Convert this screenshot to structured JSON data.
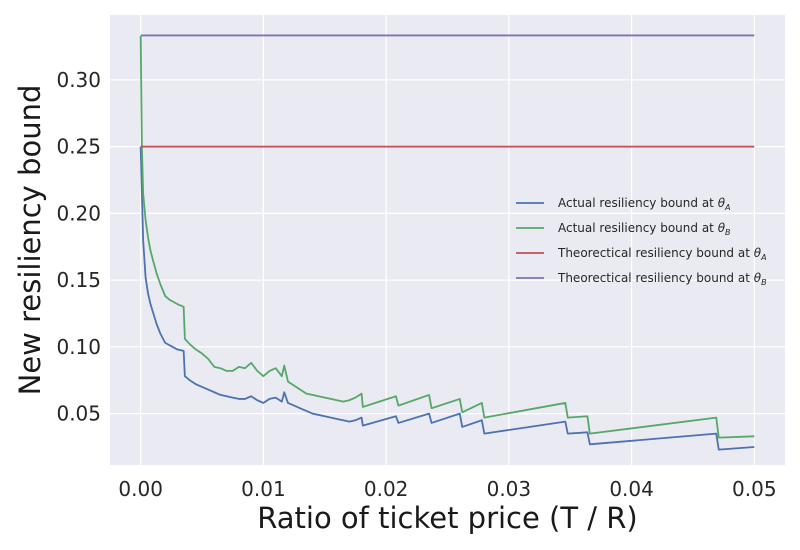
{
  "chart_data": {
    "type": "line",
    "xlabel": "Ratio of ticket price (T / R)",
    "ylabel": "New resiliency bound",
    "xlim": [
      -0.0025,
      0.0525
    ],
    "ylim": [
      0.0115,
      0.3486
    ],
    "x_ticks": [
      0.0,
      0.01,
      0.02,
      0.03,
      0.04,
      0.05
    ],
    "x_tick_labels": [
      "0.00",
      "0.01",
      "0.02",
      "0.03",
      "0.04",
      "0.05"
    ],
    "y_ticks": [
      0.05,
      0.1,
      0.15,
      0.2,
      0.25,
      0.3
    ],
    "y_tick_labels": [
      "0.05",
      "0.10",
      "0.15",
      "0.20",
      "0.25",
      "0.30"
    ],
    "grid": true,
    "style": "seaborn-darkgrid",
    "legend_position": "center-right",
    "background_color": "#eaeaf2",
    "grid_color": "#ffffff",
    "series": [
      {
        "name": "Actual resiliency bound at θA",
        "legend_main": "Actual resiliency bound at ",
        "legend_math": "θ",
        "legend_sub": "A",
        "color": "#4c72b0",
        "x": [
          0,
          0.0002,
          0.0004,
          0.0006,
          0.0008,
          0.001,
          0.0013,
          0.0016,
          0.002,
          0.0024,
          0.003,
          0.0035,
          0.0036,
          0.004,
          0.0045,
          0.005,
          0.0055,
          0.006,
          0.0065,
          0.007,
          0.0075,
          0.008,
          0.0085,
          0.009,
          0.0095,
          0.01,
          0.0105,
          0.011,
          0.0115,
          0.0117,
          0.012,
          0.0125,
          0.013,
          0.0135,
          0.014,
          0.0145,
          0.015,
          0.0155,
          0.016,
          0.0165,
          0.017,
          0.0175,
          0.018,
          0.0181,
          0.0208,
          0.021,
          0.0235,
          0.0237,
          0.026,
          0.0262,
          0.0278,
          0.028,
          0.0346,
          0.0348,
          0.0364,
          0.0366,
          0.0469,
          0.0471,
          0.05
        ],
        "y": [
          0.25,
          0.18,
          0.152,
          0.14,
          0.132,
          0.126,
          0.117,
          0.11,
          0.103,
          0.101,
          0.098,
          0.097,
          0.078,
          0.075,
          0.072,
          0.07,
          0.068,
          0.066,
          0.064,
          0.063,
          0.062,
          0.061,
          0.061,
          0.063,
          0.06,
          0.058,
          0.061,
          0.062,
          0.059,
          0.066,
          0.058,
          0.056,
          0.054,
          0.052,
          0.05,
          0.049,
          0.048,
          0.047,
          0.046,
          0.045,
          0.044,
          0.045,
          0.047,
          0.041,
          0.048,
          0.043,
          0.05,
          0.043,
          0.05,
          0.04,
          0.045,
          0.035,
          0.044,
          0.035,
          0.036,
          0.027,
          0.035,
          0.023,
          0.025
        ]
      },
      {
        "name": "Actual resiliency bound at θB",
        "legend_main": "Actual resiliency bound at ",
        "legend_math": "θ",
        "legend_sub": "B",
        "color": "#55a868",
        "x": [
          0,
          0.0001,
          0.0002,
          0.0004,
          0.0006,
          0.0008,
          0.001,
          0.0013,
          0.0016,
          0.002,
          0.0024,
          0.003,
          0.0035,
          0.0036,
          0.004,
          0.0045,
          0.005,
          0.0055,
          0.006,
          0.0065,
          0.007,
          0.0075,
          0.008,
          0.0085,
          0.009,
          0.0095,
          0.01,
          0.0105,
          0.011,
          0.0115,
          0.0117,
          0.012,
          0.0125,
          0.013,
          0.0135,
          0.014,
          0.0145,
          0.015,
          0.0155,
          0.016,
          0.0165,
          0.017,
          0.0175,
          0.018,
          0.0181,
          0.0208,
          0.021,
          0.0235,
          0.0237,
          0.026,
          0.0262,
          0.0278,
          0.028,
          0.0346,
          0.0348,
          0.0364,
          0.0366,
          0.0469,
          0.0471,
          0.05
        ],
        "y": [
          0.333,
          0.25,
          0.215,
          0.195,
          0.182,
          0.172,
          0.165,
          0.155,
          0.147,
          0.138,
          0.135,
          0.132,
          0.13,
          0.106,
          0.102,
          0.098,
          0.095,
          0.091,
          0.085,
          0.084,
          0.082,
          0.082,
          0.085,
          0.084,
          0.088,
          0.082,
          0.078,
          0.082,
          0.084,
          0.078,
          0.086,
          0.074,
          0.071,
          0.068,
          0.065,
          0.064,
          0.063,
          0.062,
          0.061,
          0.06,
          0.059,
          0.06,
          0.062,
          0.065,
          0.055,
          0.063,
          0.056,
          0.064,
          0.054,
          0.061,
          0.051,
          0.058,
          0.047,
          0.058,
          0.047,
          0.048,
          0.035,
          0.047,
          0.032,
          0.033
        ]
      },
      {
        "name": "Theorectical resiliency bound at θA",
        "legend_main": "Theorectical resiliency bound at ",
        "legend_math": "θ",
        "legend_sub": "A",
        "color": "#c44e52",
        "x": [
          0,
          0.05
        ],
        "y": [
          0.25,
          0.25
        ]
      },
      {
        "name": "Theorectical resiliency bound at θB",
        "legend_main": "Theorectical resiliency bound at ",
        "legend_math": "θ",
        "legend_sub": "B",
        "color": "#8172b2",
        "x": [
          0,
          0.05
        ],
        "y": [
          0.3333,
          0.3333
        ]
      }
    ]
  }
}
